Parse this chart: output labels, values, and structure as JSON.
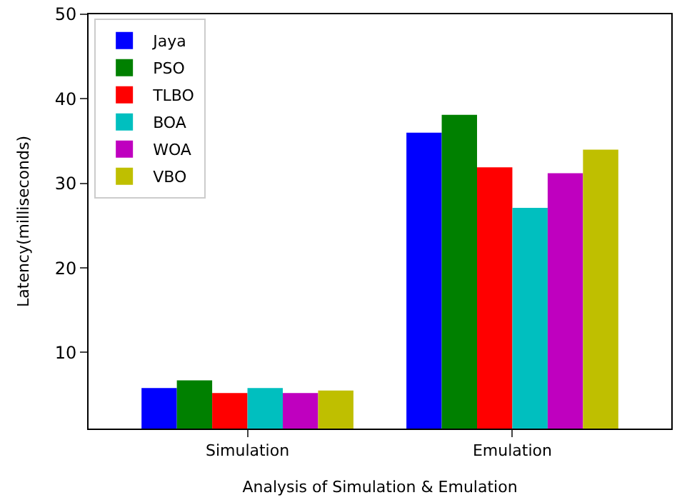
{
  "chart_data": {
    "type": "bar",
    "xlabel": "Analysis of Simulation & Emulation",
    "ylabel": "Latency(milliseconds)",
    "categories": [
      "Simulation",
      "Emulation"
    ],
    "series": [
      {
        "name": "Jaya",
        "color": "#0000ff",
        "values": [
          5.8,
          36.0
        ]
      },
      {
        "name": "PSO",
        "color": "#008000",
        "values": [
          6.7,
          38.1
        ]
      },
      {
        "name": "TLBO",
        "color": "#ff0000",
        "values": [
          5.2,
          31.9
        ]
      },
      {
        "name": "BOA",
        "color": "#00bfbf",
        "values": [
          5.8,
          27.1
        ]
      },
      {
        "name": "WOA",
        "color": "#bf00bf",
        "values": [
          5.2,
          31.2
        ]
      },
      {
        "name": "VBO",
        "color": "#bfbf00",
        "values": [
          5.5,
          34.0
        ]
      }
    ],
    "ylim": [
      1,
      50
    ],
    "yticks": [
      10,
      20,
      30,
      40,
      50
    ],
    "legend": "top left"
  }
}
